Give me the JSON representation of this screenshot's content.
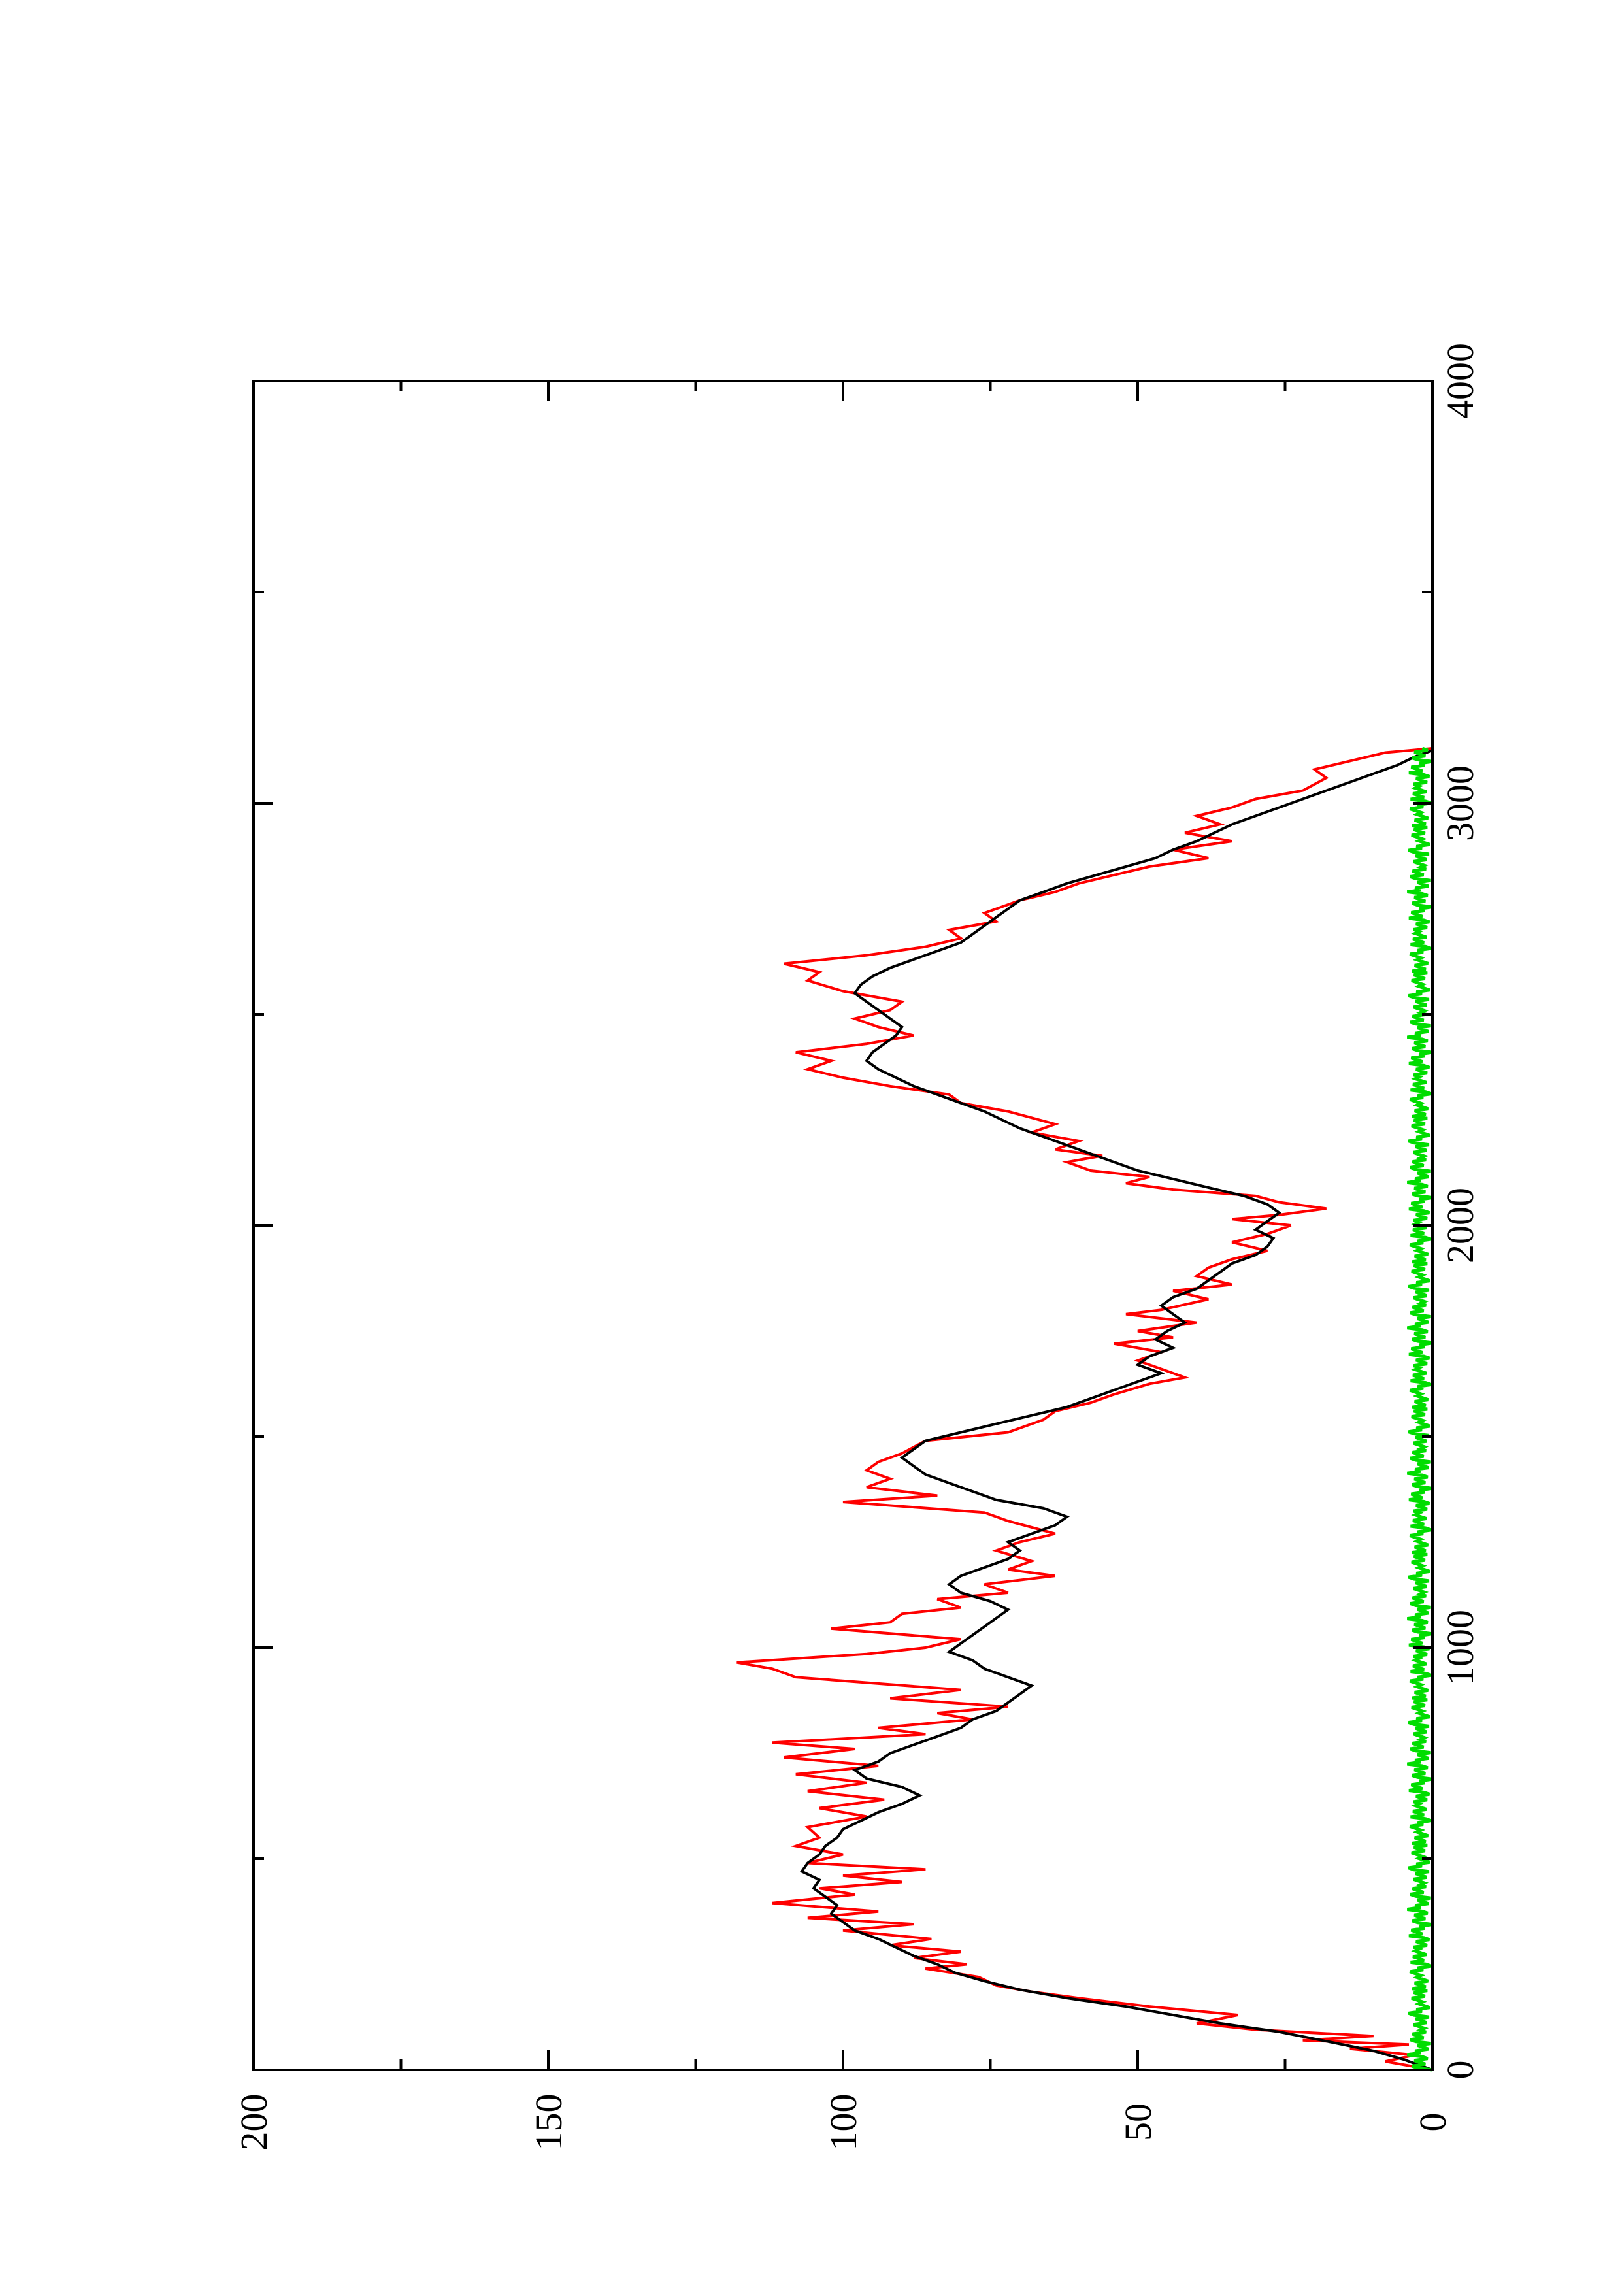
{
  "chart_data": {
    "type": "line",
    "orientation": "rotated-90-ccw",
    "title": "",
    "xlabel": "",
    "ylabel": "",
    "xlim": [
      0,
      4000
    ],
    "ylim": [
      0,
      200
    ],
    "x_ticks": [
      0,
      1000,
      2000,
      3000,
      4000
    ],
    "x_tick_labels": [
      "0",
      "1000",
      "2000",
      "3000",
      "4000"
    ],
    "y_ticks": [
      0,
      50,
      100,
      150,
      200
    ],
    "y_tick_labels": [
      "0",
      "50",
      "100",
      "150",
      "200"
    ],
    "grid": false,
    "legend": "none",
    "series": [
      {
        "color": "#ff0000",
        "points": [
          [
            0,
            0
          ],
          [
            20,
            8
          ],
          [
            35,
            3
          ],
          [
            50,
            14
          ],
          [
            60,
            4
          ],
          [
            70,
            22
          ],
          [
            80,
            10
          ],
          [
            95,
            30
          ],
          [
            110,
            40
          ],
          [
            130,
            33
          ],
          [
            150,
            48
          ],
          [
            170,
            60
          ],
          [
            185,
            68
          ],
          [
            200,
            74
          ],
          [
            220,
            77
          ],
          [
            240,
            86
          ],
          [
            250,
            79
          ],
          [
            265,
            88
          ],
          [
            280,
            80
          ],
          [
            295,
            92
          ],
          [
            310,
            85
          ],
          [
            330,
            100
          ],
          [
            345,
            88
          ],
          [
            360,
            106
          ],
          [
            375,
            94
          ],
          [
            395,
            112
          ],
          [
            415,
            98
          ],
          [
            430,
            104
          ],
          [
            445,
            90
          ],
          [
            460,
            100
          ],
          [
            475,
            86
          ],
          [
            490,
            106
          ],
          [
            510,
            100
          ],
          [
            530,
            108
          ],
          [
            550,
            104
          ],
          [
            575,
            106
          ],
          [
            600,
            96
          ],
          [
            620,
            104
          ],
          [
            640,
            93
          ],
          [
            660,
            106
          ],
          [
            680,
            96
          ],
          [
            700,
            108
          ],
          [
            720,
            94
          ],
          [
            740,
            110
          ],
          [
            760,
            98
          ],
          [
            775,
            112
          ],
          [
            795,
            86
          ],
          [
            810,
            94
          ],
          [
            830,
            78
          ],
          [
            845,
            84
          ],
          [
            860,
            72
          ],
          [
            880,
            92
          ],
          [
            900,
            80
          ],
          [
            930,
            108
          ],
          [
            950,
            112
          ],
          [
            965,
            118
          ],
          [
            985,
            96
          ],
          [
            1000,
            86
          ],
          [
            1020,
            80
          ],
          [
            1045,
            102
          ],
          [
            1060,
            92
          ],
          [
            1080,
            90
          ],
          [
            1095,
            80
          ],
          [
            1115,
            84
          ],
          [
            1130,
            72
          ],
          [
            1150,
            76
          ],
          [
            1170,
            64
          ],
          [
            1185,
            72
          ],
          [
            1205,
            68
          ],
          [
            1230,
            74
          ],
          [
            1250,
            70
          ],
          [
            1270,
            64
          ],
          [
            1300,
            72
          ],
          [
            1320,
            76
          ],
          [
            1345,
            100
          ],
          [
            1360,
            84
          ],
          [
            1380,
            96
          ],
          [
            1400,
            92
          ],
          [
            1420,
            96
          ],
          [
            1440,
            94
          ],
          [
            1460,
            90
          ],
          [
            1490,
            86
          ],
          [
            1510,
            72
          ],
          [
            1540,
            66
          ],
          [
            1560,
            64
          ],
          [
            1580,
            58
          ],
          [
            1600,
            54
          ],
          [
            1625,
            48
          ],
          [
            1640,
            42
          ],
          [
            1660,
            46
          ],
          [
            1680,
            50
          ],
          [
            1700,
            46
          ],
          [
            1720,
            54
          ],
          [
            1735,
            44
          ],
          [
            1750,
            50
          ],
          [
            1770,
            40
          ],
          [
            1790,
            52
          ],
          [
            1800,
            46
          ],
          [
            1825,
            38
          ],
          [
            1845,
            44
          ],
          [
            1860,
            34
          ],
          [
            1880,
            40
          ],
          [
            1900,
            38
          ],
          [
            1920,
            34
          ],
          [
            1940,
            28
          ],
          [
            1960,
            34
          ],
          [
            1980,
            28
          ],
          [
            2000,
            24
          ],
          [
            2015,
            34
          ],
          [
            2025,
            26
          ],
          [
            2040,
            18
          ],
          [
            2055,
            26
          ],
          [
            2070,
            30
          ],
          [
            2085,
            44
          ],
          [
            2100,
            52
          ],
          [
            2115,
            48
          ],
          [
            2130,
            58
          ],
          [
            2150,
            62
          ],
          [
            2165,
            56
          ],
          [
            2180,
            64
          ],
          [
            2200,
            60
          ],
          [
            2220,
            68
          ],
          [
            2240,
            64
          ],
          [
            2270,
            72
          ],
          [
            2290,
            80
          ],
          [
            2310,
            82
          ],
          [
            2330,
            92
          ],
          [
            2350,
            100
          ],
          [
            2370,
            106
          ],
          [
            2390,
            102
          ],
          [
            2410,
            108
          ],
          [
            2430,
            96
          ],
          [
            2450,
            88
          ],
          [
            2470,
            94
          ],
          [
            2490,
            98
          ],
          [
            2510,
            92
          ],
          [
            2530,
            90
          ],
          [
            2555,
            100
          ],
          [
            2580,
            106
          ],
          [
            2600,
            104
          ],
          [
            2620,
            110
          ],
          [
            2640,
            96
          ],
          [
            2660,
            86
          ],
          [
            2680,
            80
          ],
          [
            2700,
            82
          ],
          [
            2720,
            74
          ],
          [
            2740,
            76
          ],
          [
            2770,
            70
          ],
          [
            2790,
            64
          ],
          [
            2810,
            60
          ],
          [
            2830,
            54
          ],
          [
            2850,
            48
          ],
          [
            2870,
            38
          ],
          [
            2890,
            44
          ],
          [
            2910,
            34
          ],
          [
            2930,
            42
          ],
          [
            2950,
            36
          ],
          [
            2970,
            40
          ],
          [
            2990,
            34
          ],
          [
            3010,
            30
          ],
          [
            3030,
            22
          ],
          [
            3060,
            18
          ],
          [
            3080,
            20
          ],
          [
            3100,
            14
          ],
          [
            3120,
            8
          ],
          [
            3130,
            0
          ]
        ]
      },
      {
        "color": "#000000",
        "points": [
          [
            0,
            0
          ],
          [
            25,
            5
          ],
          [
            45,
            10
          ],
          [
            65,
            17
          ],
          [
            90,
            26
          ],
          [
            110,
            36
          ],
          [
            130,
            44
          ],
          [
            150,
            52
          ],
          [
            170,
            62
          ],
          [
            190,
            70
          ],
          [
            210,
            76
          ],
          [
            230,
            81
          ],
          [
            250,
            84
          ],
          [
            270,
            88
          ],
          [
            290,
            91
          ],
          [
            310,
            94
          ],
          [
            330,
            98
          ],
          [
            350,
            100
          ],
          [
            370,
            102
          ],
          [
            390,
            101
          ],
          [
            410,
            103
          ],
          [
            430,
            105
          ],
          [
            450,
            104
          ],
          [
            470,
            107
          ],
          [
            490,
            106
          ],
          [
            510,
            104
          ],
          [
            530,
            103
          ],
          [
            550,
            101
          ],
          [
            570,
            100
          ],
          [
            590,
            97
          ],
          [
            610,
            94
          ],
          [
            630,
            90
          ],
          [
            650,
            87
          ],
          [
            670,
            90
          ],
          [
            690,
            96
          ],
          [
            710,
            98
          ],
          [
            730,
            94
          ],
          [
            750,
            92
          ],
          [
            770,
            88
          ],
          [
            790,
            84
          ],
          [
            810,
            80
          ],
          [
            830,
            78
          ],
          [
            850,
            74
          ],
          [
            870,
            72
          ],
          [
            890,
            70
          ],
          [
            910,
            68
          ],
          [
            930,
            72
          ],
          [
            950,
            76
          ],
          [
            970,
            78
          ],
          [
            990,
            82
          ],
          [
            1010,
            80
          ],
          [
            1030,
            78
          ],
          [
            1050,
            76
          ],
          [
            1070,
            74
          ],
          [
            1090,
            72
          ],
          [
            1110,
            75
          ],
          [
            1130,
            80
          ],
          [
            1150,
            82
          ],
          [
            1170,
            80
          ],
          [
            1190,
            76
          ],
          [
            1210,
            72
          ],
          [
            1230,
            70
          ],
          [
            1250,
            72
          ],
          [
            1270,
            68
          ],
          [
            1290,
            64
          ],
          [
            1310,
            62
          ],
          [
            1330,
            66
          ],
          [
            1350,
            74
          ],
          [
            1370,
            78
          ],
          [
            1390,
            82
          ],
          [
            1410,
            86
          ],
          [
            1430,
            88
          ],
          [
            1450,
            90
          ],
          [
            1470,
            88
          ],
          [
            1490,
            86
          ],
          [
            1510,
            80
          ],
          [
            1530,
            74
          ],
          [
            1550,
            68
          ],
          [
            1570,
            62
          ],
          [
            1590,
            58
          ],
          [
            1610,
            54
          ],
          [
            1630,
            50
          ],
          [
            1650,
            46
          ],
          [
            1670,
            50
          ],
          [
            1690,
            48
          ],
          [
            1710,
            44
          ],
          [
            1730,
            47
          ],
          [
            1750,
            45
          ],
          [
            1770,
            42
          ],
          [
            1790,
            44
          ],
          [
            1810,
            46
          ],
          [
            1830,
            44
          ],
          [
            1850,
            40
          ],
          [
            1870,
            38
          ],
          [
            1890,
            36
          ],
          [
            1910,
            34
          ],
          [
            1930,
            30
          ],
          [
            1950,
            28
          ],
          [
            1970,
            27
          ],
          [
            1990,
            30
          ],
          [
            2010,
            28
          ],
          [
            2030,
            26
          ],
          [
            2050,
            28
          ],
          [
            2070,
            32
          ],
          [
            2090,
            38
          ],
          [
            2110,
            44
          ],
          [
            2130,
            50
          ],
          [
            2150,
            54
          ],
          [
            2170,
            58
          ],
          [
            2190,
            62
          ],
          [
            2210,
            66
          ],
          [
            2230,
            70
          ],
          [
            2250,
            73
          ],
          [
            2270,
            76
          ],
          [
            2290,
            80
          ],
          [
            2310,
            84
          ],
          [
            2330,
            88
          ],
          [
            2350,
            91
          ],
          [
            2370,
            94
          ],
          [
            2390,
            96
          ],
          [
            2410,
            95
          ],
          [
            2430,
            93
          ],
          [
            2450,
            91
          ],
          [
            2470,
            90
          ],
          [
            2490,
            92
          ],
          [
            2510,
            94
          ],
          [
            2530,
            96
          ],
          [
            2550,
            98
          ],
          [
            2570,
            97
          ],
          [
            2590,
            95
          ],
          [
            2610,
            92
          ],
          [
            2630,
            88
          ],
          [
            2650,
            84
          ],
          [
            2670,
            80
          ],
          [
            2690,
            78
          ],
          [
            2710,
            76
          ],
          [
            2730,
            74
          ],
          [
            2750,
            72
          ],
          [
            2770,
            70
          ],
          [
            2790,
            66
          ],
          [
            2810,
            62
          ],
          [
            2830,
            57
          ],
          [
            2850,
            52
          ],
          [
            2870,
            47
          ],
          [
            2890,
            44
          ],
          [
            2910,
            40
          ],
          [
            2930,
            37
          ],
          [
            2950,
            34
          ],
          [
            2970,
            30
          ],
          [
            2990,
            26
          ],
          [
            3010,
            22
          ],
          [
            3030,
            18
          ],
          [
            3050,
            14
          ],
          [
            3070,
            10
          ],
          [
            3090,
            6
          ],
          [
            3110,
            3
          ],
          [
            3125,
            0
          ]
        ]
      },
      {
        "color": "#00dd00",
        "points": [
          [
            0,
            0
          ],
          [
            3130,
            0
          ]
        ]
      }
    ]
  }
}
